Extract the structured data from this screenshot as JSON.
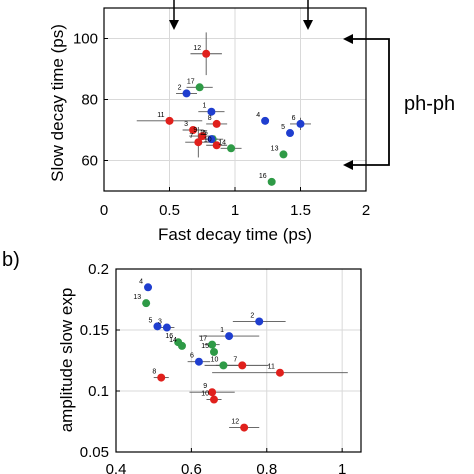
{
  "chart_data": [
    {
      "type": "scatter",
      "title": "",
      "xlabel": "Fast decay time (ps)",
      "ylabel": "Slow decay time (ps)",
      "xlim": [
        0,
        2
      ],
      "ylim": [
        50,
        110
      ],
      "xticks": [
        "0",
        "0.5",
        "1",
        "1.5",
        "2"
      ],
      "yticks": [
        "60",
        "80",
        "100"
      ],
      "grid": true,
      "annotation": "ph-ph",
      "points": [
        {
          "label": "12",
          "x": 0.78,
          "y": 95,
          "color": "#e0201c",
          "xerr": 0.12,
          "yerr": 7
        },
        {
          "label": "17",
          "x": 0.73,
          "y": 84,
          "color": "#2e9a46",
          "xerr": 0.1,
          "yerr": 0
        },
        {
          "label": "2",
          "x": 0.63,
          "y": 82,
          "color": "#1f3ecf",
          "xerr": 0.08,
          "yerr": 0
        },
        {
          "label": "1",
          "x": 0.82,
          "y": 76,
          "color": "#1f3ecf",
          "xerr": 0.1,
          "yerr": 0
        },
        {
          "label": "11",
          "x": 0.5,
          "y": 73,
          "color": "#e0201c",
          "xerr": 0.25,
          "yerr": 0
        },
        {
          "label": "8",
          "x": 0.86,
          "y": 72,
          "color": "#e0201c",
          "xerr": 0.08,
          "yerr": 0
        },
        {
          "label": "3",
          "x": 0.68,
          "y": 70,
          "color": "#e0201c",
          "xerr": 0.08,
          "yerr": 0
        },
        {
          "label": "9",
          "x": 0.75,
          "y": 68,
          "color": "#e0201c",
          "xerr": 0.1,
          "yerr": 0
        },
        {
          "label": "15",
          "x": 0.83,
          "y": 67,
          "color": "#2e9a46",
          "xerr": 0.08,
          "yerr": 0
        },
        {
          "label": "7",
          "x": 0.72,
          "y": 66,
          "color": "#e0201c",
          "xerr": 0.1,
          "yerr": 5
        },
        {
          "label": "5",
          "x": 0.82,
          "y": 67,
          "color": "#1f3ecf",
          "xerr": 0.05,
          "yerr": 0
        },
        {
          "label": "10",
          "x": 0.86,
          "y": 65,
          "color": "#e0201c",
          "xerr": 0.08,
          "yerr": 0
        },
        {
          "label": "14",
          "x": 0.97,
          "y": 64,
          "color": "#2e9a46",
          "xerr": 0.08,
          "yerr": 0
        },
        {
          "label": "4",
          "x": 1.23,
          "y": 73,
          "color": "#1f3ecf",
          "xerr": 0,
          "yerr": 0
        },
        {
          "label": "6",
          "x": 1.5,
          "y": 72,
          "color": "#1f3ecf",
          "xerr": 0.08,
          "yerr": 2
        },
        {
          "label": "5",
          "x": 1.42,
          "y": 69,
          "color": "#1f3ecf",
          "xerr": 0,
          "yerr": 0
        },
        {
          "label": "13",
          "x": 1.37,
          "y": 62,
          "color": "#2e9a46",
          "xerr": 0,
          "yerr": 0
        },
        {
          "label": "16",
          "x": 1.28,
          "y": 53,
          "color": "#2e9a46",
          "xerr": 0,
          "yerr": 0
        }
      ]
    },
    {
      "type": "scatter",
      "panel_label": "b)",
      "title": "",
      "xlabel": "",
      "ylabel": "amplitude slow exp",
      "xlim": [
        0.4,
        1.05
      ],
      "ylim": [
        0.05,
        0.2
      ],
      "xticks": [
        "0.4",
        "0.6",
        "0.8",
        "1"
      ],
      "yticks": [
        "0.05",
        "0.1",
        "0.15",
        "0.2"
      ],
      "grid": true,
      "points": [
        {
          "label": "4",
          "x": 0.485,
          "y": 0.185,
          "color": "#1f3ecf",
          "xerr": 0,
          "yerr": 0
        },
        {
          "label": "13",
          "x": 0.48,
          "y": 0.172,
          "color": "#2e9a46",
          "xerr": 0,
          "yerr": 0
        },
        {
          "label": "2",
          "x": 0.78,
          "y": 0.157,
          "color": "#1f3ecf",
          "xerr": 0.07,
          "yerr": 0
        },
        {
          "label": "5",
          "x": 0.51,
          "y": 0.153,
          "color": "#1f3ecf",
          "xerr": 0,
          "yerr": 0
        },
        {
          "label": "3",
          "x": 0.535,
          "y": 0.152,
          "color": "#1f3ecf",
          "xerr": 0.02,
          "yerr": 0
        },
        {
          "label": "1",
          "x": 0.7,
          "y": 0.145,
          "color": "#1f3ecf",
          "xerr": 0.08,
          "yerr": 0
        },
        {
          "label": "16",
          "x": 0.565,
          "y": 0.14,
          "color": "#2e9a46",
          "xerr": 0,
          "yerr": 0
        },
        {
          "label": "14",
          "x": 0.575,
          "y": 0.137,
          "color": "#2e9a46",
          "xerr": 0,
          "yerr": 0
        },
        {
          "label": "17",
          "x": 0.655,
          "y": 0.138,
          "color": "#2e9a46",
          "xerr": 0.02,
          "yerr": 0
        },
        {
          "label": "15",
          "x": 0.66,
          "y": 0.132,
          "color": "#2e9a46",
          "xerr": 0,
          "yerr": 0
        },
        {
          "label": "6",
          "x": 0.62,
          "y": 0.124,
          "color": "#1f3ecf",
          "xerr": 0.03,
          "yerr": 0
        },
        {
          "label": "10",
          "x": 0.685,
          "y": 0.121,
          "color": "#2e9a46",
          "xerr": 0.05,
          "yerr": 0
        },
        {
          "label": "7",
          "x": 0.735,
          "y": 0.121,
          "color": "#e0201c",
          "xerr": 0.07,
          "yerr": 0
        },
        {
          "label": "11",
          "x": 0.835,
          "y": 0.115,
          "color": "#e0201c",
          "xerr": 0.18,
          "yerr": 0
        },
        {
          "label": "8",
          "x": 0.52,
          "y": 0.111,
          "color": "#e0201c",
          "xerr": 0.02,
          "yerr": 0
        },
        {
          "label": "9",
          "x": 0.655,
          "y": 0.099,
          "color": "#e0201c",
          "xerr": 0.06,
          "yerr": 0
        },
        {
          "label": "10",
          "x": 0.66,
          "y": 0.093,
          "color": "#e0201c",
          "xerr": 0.02,
          "yerr": 0
        },
        {
          "label": "12",
          "x": 0.74,
          "y": 0.07,
          "color": "#e0201c",
          "xerr": 0.04,
          "yerr": 0
        }
      ]
    }
  ]
}
